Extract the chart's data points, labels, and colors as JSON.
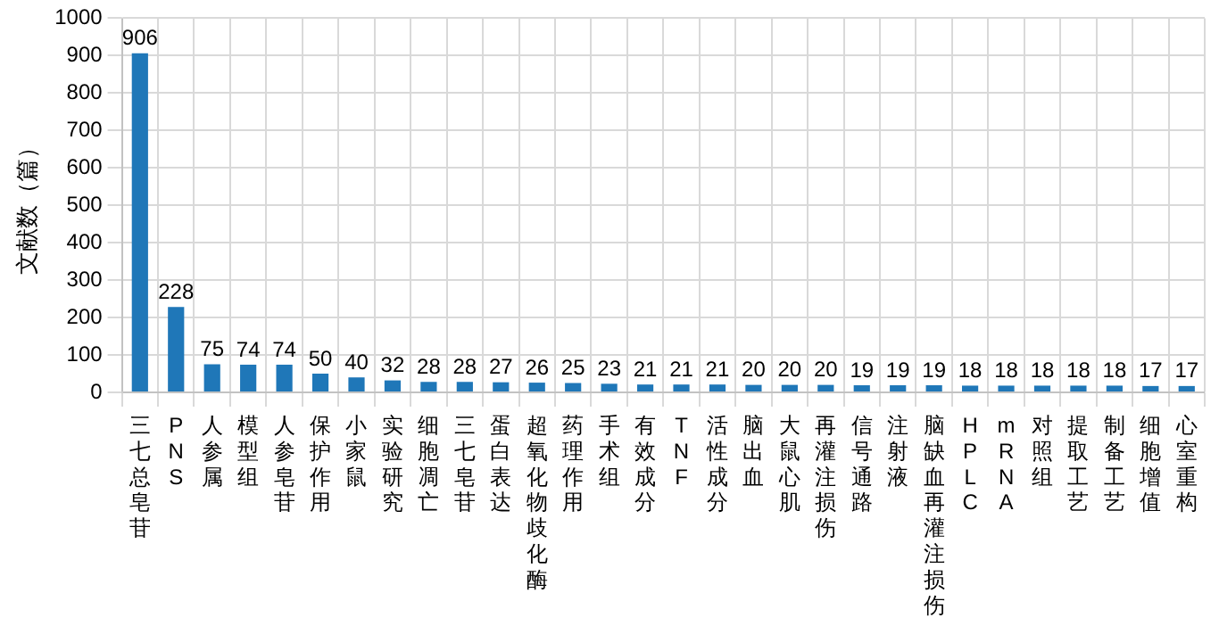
{
  "chart_data": {
    "type": "bar",
    "ylabel": "文献数（篇）",
    "categories": [
      "三七总皂苷",
      "PNS",
      "人参属",
      "模型组",
      "人参皂苷",
      "保护作用",
      "小家鼠",
      "实验研究",
      "细胞凋亡",
      "三七皂苷",
      "蛋白表达",
      "超氧化物歧化酶",
      "药理作用",
      "手术组",
      "有效成分",
      "TNF",
      "活性成分",
      "脑出血",
      "大鼠心肌",
      "再灌注损伤",
      "信号通路",
      "注射液",
      "脑缺血再灌注损伤",
      "HPLC",
      "mRNA",
      "对照组",
      "提取工艺",
      "制备工艺",
      "细胞增值",
      "心室重构"
    ],
    "values": [
      906,
      228,
      75,
      74,
      74,
      50,
      40,
      32,
      28,
      28,
      27,
      26,
      25,
      23,
      21,
      21,
      21,
      20,
      20,
      20,
      19,
      19,
      19,
      18,
      18,
      18,
      18,
      18,
      17,
      17
    ],
    "color": "#1f77b8",
    "ylim": [
      0,
      1000
    ],
    "yticks": [
      0,
      100,
      200,
      300,
      400,
      500,
      600,
      700,
      800,
      900,
      1000
    ],
    "grid": true,
    "data_labels": true
  }
}
